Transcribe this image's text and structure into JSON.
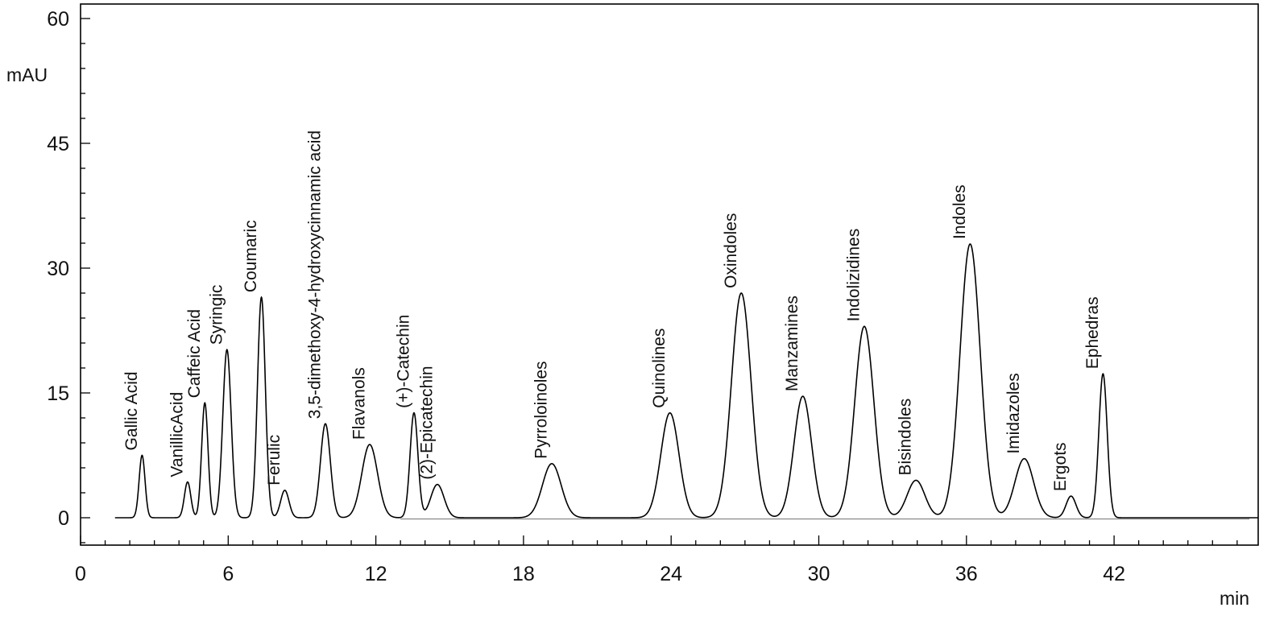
{
  "chart_data": {
    "type": "line",
    "title": "",
    "xlabel": "min",
    "ylabel": "mAU",
    "xlim": [
      0,
      48
    ],
    "ylim": [
      -3.2,
      61.5
    ],
    "x_ticks": [
      0,
      6,
      12,
      18,
      24,
      30,
      36,
      42
    ],
    "y_ticks": [
      0,
      15,
      30,
      45,
      60
    ],
    "grid": false,
    "legend": "none",
    "line_color": "#000000",
    "peaks": [
      {
        "label": "Gallic Acid",
        "rt": 2.5,
        "height": 7.5,
        "width": 0.12
      },
      {
        "label": "VanillicAcid",
        "rt": 4.35,
        "height": 4.3,
        "width": 0.13
      },
      {
        "label": "Caffeic Acid",
        "rt": 5.05,
        "height": 13.8,
        "width": 0.13
      },
      {
        "label": "Syringic",
        "rt": 5.95,
        "height": 20.2,
        "width": 0.17
      },
      {
        "label": "Coumaric",
        "rt": 7.35,
        "height": 26.5,
        "width": 0.16
      },
      {
        "label": "Ferulic",
        "rt": 8.3,
        "height": 3.3,
        "width": 0.17
      },
      {
        "label": "3,5-dimethoxy-4-hydroxycinnamic acid",
        "rt": 9.95,
        "height": 11.3,
        "width": 0.2
      },
      {
        "label": "Flavanols",
        "rt": 11.75,
        "height": 8.8,
        "width": 0.32
      },
      {
        "label": "(+)-Catechin",
        "rt": 13.55,
        "height": 12.6,
        "width": 0.16
      },
      {
        "label": "(2)-Epicatechin",
        "rt": 14.5,
        "height": 4.0,
        "width": 0.27
      },
      {
        "label": "Pyrroloinoles",
        "rt": 19.15,
        "height": 6.5,
        "width": 0.38
      },
      {
        "label": "Quinolines",
        "rt": 23.95,
        "height": 12.6,
        "width": 0.37
      },
      {
        "label": "Oxindoles",
        "rt": 26.85,
        "height": 27.0,
        "width": 0.4
      },
      {
        "label": "Manzamines",
        "rt": 29.35,
        "height": 14.6,
        "width": 0.36
      },
      {
        "label": "Indolizidines",
        "rt": 31.85,
        "height": 23.0,
        "width": 0.39
      },
      {
        "label": "Bisindoles",
        "rt": 33.95,
        "height": 4.5,
        "width": 0.36
      },
      {
        "label": "Indoles",
        "rt": 36.15,
        "height": 32.9,
        "width": 0.41
      },
      {
        "label": "Imidazoles",
        "rt": 38.35,
        "height": 7.1,
        "width": 0.38
      },
      {
        "label": "Ergots",
        "rt": 40.25,
        "height": 2.6,
        "width": 0.2
      },
      {
        "label": "Ephedras",
        "rt": 41.55,
        "height": 17.3,
        "width": 0.17
      }
    ]
  }
}
